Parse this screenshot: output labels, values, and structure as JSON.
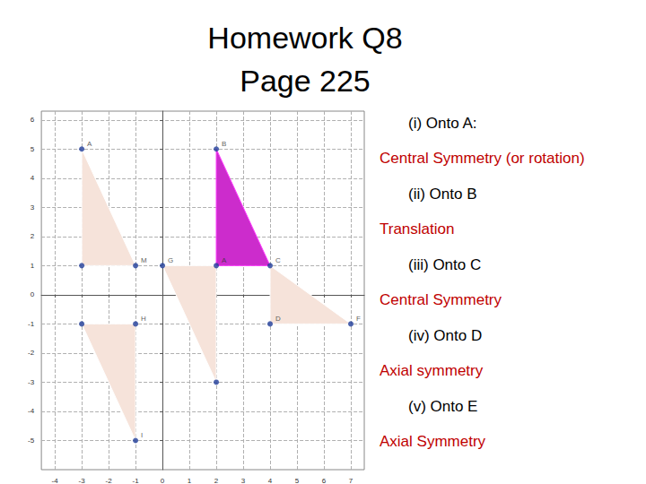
{
  "header": {
    "title": [
      "Homework Q8",
      "Page 225"
    ]
  },
  "answers": [
    {
      "question": "(i) Onto A:",
      "answer": "Central Symmetry  (or rotation)"
    },
    {
      "question": "(ii) Onto B",
      "answer": "Translation"
    },
    {
      "question": "(iii) Onto C",
      "answer": "Central Symmetry"
    },
    {
      "question": "(iv) Onto D",
      "answer": "Axial symmetry"
    },
    {
      "question": "(v) Onto E",
      "answer": "Axial Symmetry"
    }
  ],
  "chart_data": {
    "type": "polygon",
    "xlim": [
      -4.5,
      7.5
    ],
    "ylim": [
      -6,
      6.3
    ],
    "xticks": [
      -4,
      -3,
      -2,
      -1,
      0,
      1,
      2,
      3,
      4,
      5,
      6,
      7
    ],
    "yticks": [
      -5,
      -4,
      -3,
      -2,
      -1,
      0,
      1,
      2,
      3,
      4,
      5,
      6
    ],
    "grid": true,
    "series": [
      {
        "type": "polygon",
        "color": "#f6e3da",
        "values": [
          [
            -3,
            5
          ],
          [
            -3,
            1
          ],
          [
            -1,
            1
          ]
        ]
      },
      {
        "type": "polygon",
        "color": "#cc2ccc",
        "values": [
          [
            2,
            5
          ],
          [
            2,
            1
          ],
          [
            4,
            1
          ]
        ]
      },
      {
        "type": "polygon",
        "color": "#f6e3da",
        "values": [
          [
            0,
            1
          ],
          [
            2,
            1
          ],
          [
            2,
            -3
          ]
        ]
      },
      {
        "type": "polygon",
        "color": "#f6e3da",
        "values": [
          [
            4,
            1
          ],
          [
            4,
            -1
          ],
          [
            7,
            -1
          ]
        ]
      },
      {
        "type": "polygon",
        "color": "#f6e3da",
        "values": [
          [
            -1,
            -1
          ],
          [
            -3,
            -1
          ],
          [
            -1,
            -5
          ]
        ]
      },
      {
        "type": "scatter",
        "color": "#1f3c99",
        "values": [
          [
            -3,
            5
          ],
          [
            -1,
            1
          ],
          [
            -3,
            1
          ],
          [
            2,
            5
          ],
          [
            2,
            1
          ],
          [
            0,
            1
          ],
          [
            4,
            1
          ],
          [
            2,
            -3
          ],
          [
            4,
            -1
          ],
          [
            7,
            -1
          ],
          [
            -1,
            -1
          ],
          [
            -3,
            -1
          ],
          [
            -1,
            -5
          ]
        ],
        "labels": [
          "A",
          "M",
          null,
          "B",
          "A",
          "G",
          "C",
          null,
          "D",
          "F",
          "H",
          null,
          "I"
        ]
      }
    ]
  }
}
